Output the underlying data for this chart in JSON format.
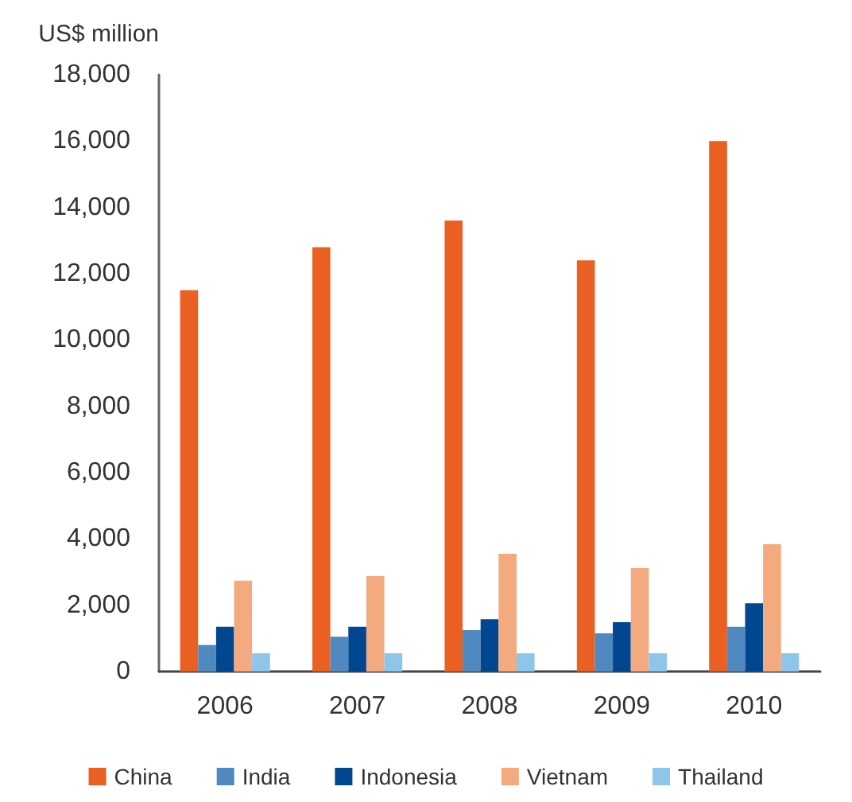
{
  "chart_data": {
    "type": "bar",
    "ylabel": "US$ million",
    "categories": [
      "2006",
      "2007",
      "2008",
      "2009",
      "2010"
    ],
    "series": [
      {
        "name": "China",
        "color": "#e96022",
        "values": [
          11500,
          12800,
          13600,
          12400,
          16000
        ]
      },
      {
        "name": "India",
        "color": "#5088c0",
        "values": [
          800,
          1050,
          1250,
          1150,
          1350
        ]
      },
      {
        "name": "Indonesia",
        "color": "#00478f",
        "values": [
          1350,
          1350,
          1580,
          1490,
          2060
        ]
      },
      {
        "name": "Vietnam",
        "color": "#f4aa7f",
        "values": [
          2740,
          2880,
          3550,
          3120,
          3840
        ]
      },
      {
        "name": "Thailand",
        "color": "#8ec5ea",
        "values": [
          550,
          550,
          550,
          550,
          550
        ]
      }
    ],
    "ylim": [
      0,
      18000
    ],
    "yticks": [
      0,
      {
        "value": 2000,
        "label": "2,000"
      },
      {
        "value": 4000,
        "label": "4,000"
      },
      {
        "value": 6000,
        "label": "6,000"
      },
      {
        "value": 8000,
        "label": "8,000"
      },
      {
        "value": 10000,
        "label": "10,000"
      },
      {
        "value": 12000,
        "label": "12,000"
      },
      {
        "value": 14000,
        "label": "14,000"
      },
      {
        "value": 16000,
        "label": "16,000"
      },
      {
        "value": 18000,
        "label": "18,000"
      }
    ],
    "grid": false,
    "legend": "bottom"
  }
}
